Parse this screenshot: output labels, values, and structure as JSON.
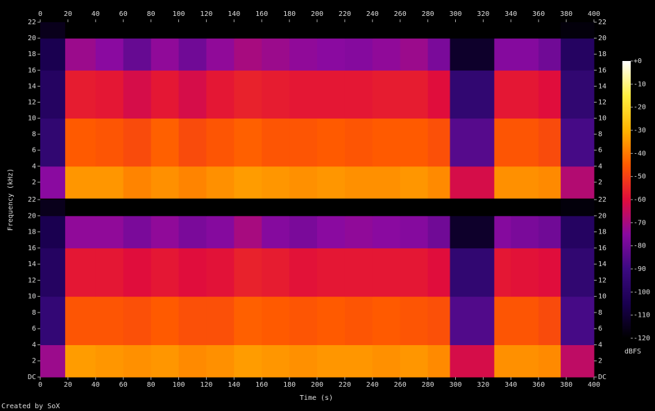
{
  "chart_data": {
    "type": "spectrogram",
    "xlabel": "Time (s)",
    "ylabel": "Frequency (kHz)",
    "credit": "Created by SoX",
    "xlim": [
      0,
      400
    ],
    "xticks": [
      0,
      20,
      40,
      60,
      80,
      100,
      120,
      140,
      160,
      180,
      200,
      220,
      240,
      260,
      280,
      300,
      320,
      340,
      360,
      380,
      400
    ],
    "time_edges": [
      0,
      18,
      40,
      60,
      80,
      100,
      120,
      140,
      160,
      180,
      200,
      220,
      240,
      260,
      280,
      296,
      328,
      340,
      360,
      376,
      400
    ],
    "freq_edges": [
      0,
      4,
      10,
      16,
      20,
      22
    ],
    "channels": [
      {
        "ylim": [
          0,
          22
        ],
        "yticks": [
          2,
          4,
          6,
          8,
          10,
          12,
          14,
          16,
          18,
          20,
          22
        ],
        "values": [
          [
            -75,
            -35,
            -35,
            -38,
            -36,
            -38,
            -36,
            -34,
            -35,
            -36,
            -35,
            -36,
            -36,
            -35,
            -37,
            -62,
            -36,
            -36,
            -37,
            -68
          ],
          [
            -95,
            -45,
            -46,
            -48,
            -44,
            -48,
            -46,
            -44,
            -46,
            -46,
            -45,
            -46,
            -45,
            -45,
            -47,
            -85,
            -46,
            -46,
            -48,
            -88
          ],
          [
            -100,
            -57,
            -58,
            -62,
            -58,
            -62,
            -58,
            -56,
            -57,
            -58,
            -58,
            -58,
            -57,
            -57,
            -60,
            -95,
            -58,
            -58,
            -60,
            -95
          ],
          [
            -105,
            -72,
            -75,
            -82,
            -74,
            -80,
            -74,
            -70,
            -72,
            -74,
            -75,
            -76,
            -74,
            -72,
            -78,
            -112,
            -76,
            -76,
            -80,
            -100
          ],
          [
            -115,
            -120,
            -120,
            -120,
            -120,
            -120,
            -120,
            -120,
            -120,
            -120,
            -120,
            -120,
            -120,
            -120,
            -120,
            -120,
            -120,
            -120,
            -120,
            -118
          ]
        ]
      },
      {
        "ylim": [
          0,
          22
        ],
        "yticks": [
          {
            "value": 0,
            "label": "DC"
          },
          2,
          4,
          6,
          8,
          10,
          12,
          14,
          16,
          18,
          20,
          22
        ],
        "values": [
          [
            -72,
            -34,
            -35,
            -36,
            -35,
            -37,
            -36,
            -34,
            -35,
            -36,
            -35,
            -35,
            -36,
            -35,
            -37,
            -62,
            -36,
            -36,
            -37,
            -66
          ],
          [
            -94,
            -46,
            -46,
            -47,
            -45,
            -47,
            -47,
            -44,
            -45,
            -46,
            -45,
            -46,
            -45,
            -46,
            -47,
            -86,
            -46,
            -46,
            -48,
            -88
          ],
          [
            -100,
            -58,
            -58,
            -60,
            -58,
            -60,
            -59,
            -56,
            -57,
            -59,
            -58,
            -58,
            -58,
            -58,
            -60,
            -95,
            -58,
            -59,
            -60,
            -95
          ],
          [
            -105,
            -74,
            -74,
            -78,
            -74,
            -78,
            -76,
            -70,
            -76,
            -78,
            -75,
            -74,
            -75,
            -76,
            -80,
            -112,
            -76,
            -78,
            -80,
            -100
          ],
          [
            -115,
            -120,
            -120,
            -120,
            -120,
            -120,
            -120,
            -120,
            -120,
            -120,
            -120,
            -120,
            -120,
            -120,
            -120,
            -120,
            -120,
            -120,
            -120,
            -118
          ]
        ]
      }
    ],
    "colorbar": {
      "label": "dBFS",
      "lim": [
        -120,
        0
      ],
      "ticks": [
        {
          "value": 0,
          "label": "+0"
        },
        -10,
        -20,
        -30,
        -40,
        -50,
        -60,
        -70,
        -80,
        -90,
        -100,
        -110,
        -120
      ]
    }
  }
}
